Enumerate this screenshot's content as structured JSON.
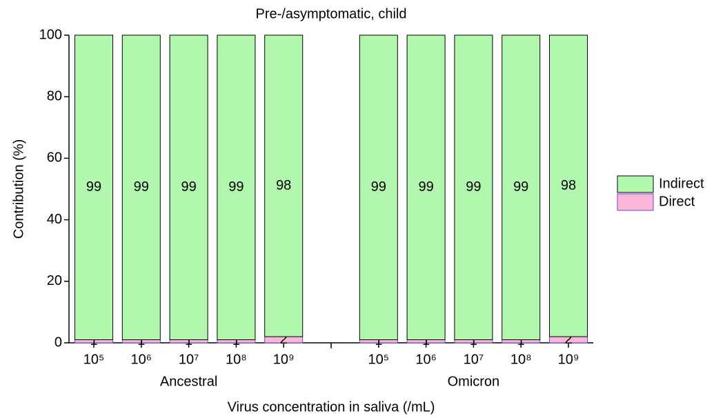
{
  "chart_data": {
    "type": "bar",
    "stacked": true,
    "title": "Pre-/asymptomatic, child",
    "xlabel": "Virus concentration in saliva (/mL)",
    "ylabel": "Contribution (%)",
    "groups": [
      {
        "name": "Ancestral",
        "categories": [
          "10⁵",
          "10⁶",
          "10⁷",
          "10⁸",
          "10⁹"
        ]
      },
      {
        "name": "Omicron",
        "categories": [
          "10⁵",
          "10⁶",
          "10⁷",
          "10⁸",
          "10⁹"
        ]
      }
    ],
    "series": [
      {
        "name": "Direct",
        "color": "#f9b6d8",
        "edge": "#7a3fd6",
        "values": [
          [
            1,
            1,
            1,
            1,
            2
          ],
          [
            1,
            1,
            1,
            1,
            2
          ]
        ]
      },
      {
        "name": "Indirect",
        "color": "#b1f7ae",
        "edge": "#000000",
        "values": [
          [
            99,
            99,
            99,
            99,
            98
          ],
          [
            99,
            99,
            99,
            99,
            98
          ]
        ]
      }
    ],
    "ylim": [
      0,
      100
    ],
    "yticks": [
      0,
      20,
      40,
      60,
      80,
      100
    ],
    "legend": "right"
  }
}
